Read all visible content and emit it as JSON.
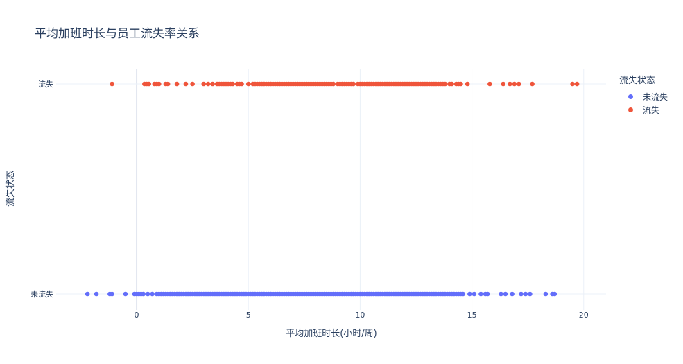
{
  "chart_data": {
    "type": "scatter",
    "title": "平均加班时长与员工流失率关系",
    "xlabel": "平均加班时长(小时/周)",
    "ylabel": "流失状态",
    "xlim": [
      -3.6,
      21
    ],
    "x_ticks": [
      0,
      5,
      10,
      15,
      20
    ],
    "categories": [
      "未流失",
      "流失"
    ],
    "legend_title": "流失状态",
    "legend_position": "top-right",
    "grid": true,
    "series": [
      {
        "name": "未流失",
        "color": "#636efa",
        "category": "未流失",
        "x": [
          -2.2,
          -1.8,
          -1.2,
          -1.1,
          -0.5,
          -0.1,
          0.0,
          0.1,
          0.2,
          0.3,
          0.5,
          0.7,
          0.9,
          1.0,
          1.1,
          1.2,
          1.3,
          1.4,
          1.5,
          1.6,
          1.7,
          1.8,
          1.9,
          2.0,
          2.1,
          2.2,
          2.3,
          2.4,
          2.5,
          2.6,
          2.7,
          2.8,
          2.9,
          3.0,
          3.1,
          3.2,
          3.3,
          3.4,
          3.5,
          3.6,
          3.7,
          3.8,
          3.9,
          4.0,
          4.1,
          4.2,
          4.3,
          4.4,
          4.5,
          4.6,
          4.7,
          4.8,
          4.9,
          5.0,
          5.1,
          5.2,
          5.3,
          5.4,
          5.5,
          5.6,
          5.7,
          5.8,
          5.9,
          6.0,
          6.1,
          6.2,
          6.3,
          6.4,
          6.5,
          6.6,
          6.7,
          6.8,
          6.9,
          7.0,
          7.1,
          7.2,
          7.3,
          7.4,
          7.5,
          7.6,
          7.7,
          7.8,
          7.9,
          8.0,
          8.1,
          8.2,
          8.3,
          8.4,
          8.5,
          8.6,
          8.7,
          8.8,
          8.9,
          9.0,
          9.1,
          9.2,
          9.3,
          9.4,
          9.5,
          9.6,
          9.7,
          9.8,
          9.9,
          10.0,
          10.1,
          10.2,
          10.3,
          10.4,
          10.5,
          10.6,
          10.7,
          10.8,
          10.9,
          11.0,
          11.1,
          11.2,
          11.3,
          11.4,
          11.5,
          11.6,
          11.7,
          11.8,
          11.9,
          12.0,
          12.1,
          12.2,
          12.3,
          12.4,
          12.5,
          12.6,
          12.7,
          12.8,
          12.9,
          13.0,
          13.1,
          13.2,
          13.3,
          13.4,
          13.5,
          13.6,
          13.7,
          13.8,
          13.9,
          14.0,
          14.1,
          14.2,
          14.3,
          14.4,
          14.5,
          14.6,
          14.9,
          15.1,
          15.4,
          15.6,
          15.7,
          16.3,
          16.5,
          16.8,
          17.2,
          17.4,
          17.6,
          18.3,
          18.6,
          18.7
        ]
      },
      {
        "name": "流失",
        "color": "#ef553b",
        "category": "流失",
        "x": [
          -1.1,
          0.35,
          0.45,
          0.55,
          0.8,
          0.9,
          1.0,
          1.3,
          1.4,
          1.8,
          2.2,
          2.5,
          3.0,
          3.2,
          3.4,
          3.6,
          3.7,
          3.8,
          3.9,
          4.0,
          4.1,
          4.2,
          4.3,
          4.5,
          4.6,
          4.7,
          5.0,
          5.2,
          5.3,
          5.4,
          5.5,
          5.6,
          5.7,
          5.8,
          5.9,
          6.0,
          6.1,
          6.2,
          6.3,
          6.4,
          6.5,
          6.6,
          6.7,
          6.8,
          6.9,
          7.0,
          7.1,
          7.2,
          7.3,
          7.4,
          7.5,
          7.6,
          7.7,
          7.8,
          7.9,
          8.0,
          8.1,
          8.2,
          8.3,
          8.4,
          8.5,
          8.6,
          8.7,
          8.8,
          9.0,
          9.1,
          9.2,
          9.3,
          9.4,
          9.5,
          9.6,
          9.7,
          9.9,
          10.0,
          10.1,
          10.2,
          10.3,
          10.4,
          10.5,
          10.6,
          10.7,
          10.8,
          10.9,
          11.0,
          11.1,
          11.2,
          11.3,
          11.4,
          11.5,
          11.6,
          11.7,
          11.8,
          11.9,
          12.0,
          12.1,
          12.2,
          12.3,
          12.4,
          12.5,
          12.6,
          12.7,
          12.8,
          12.9,
          13.0,
          13.1,
          13.2,
          13.3,
          13.4,
          13.5,
          13.6,
          13.7,
          13.8,
          14.0,
          14.1,
          14.3,
          14.4,
          14.5,
          14.8,
          15.8,
          16.4,
          16.7,
          16.9,
          17.1,
          17.7,
          19.5,
          19.7
        ]
      }
    ]
  }
}
